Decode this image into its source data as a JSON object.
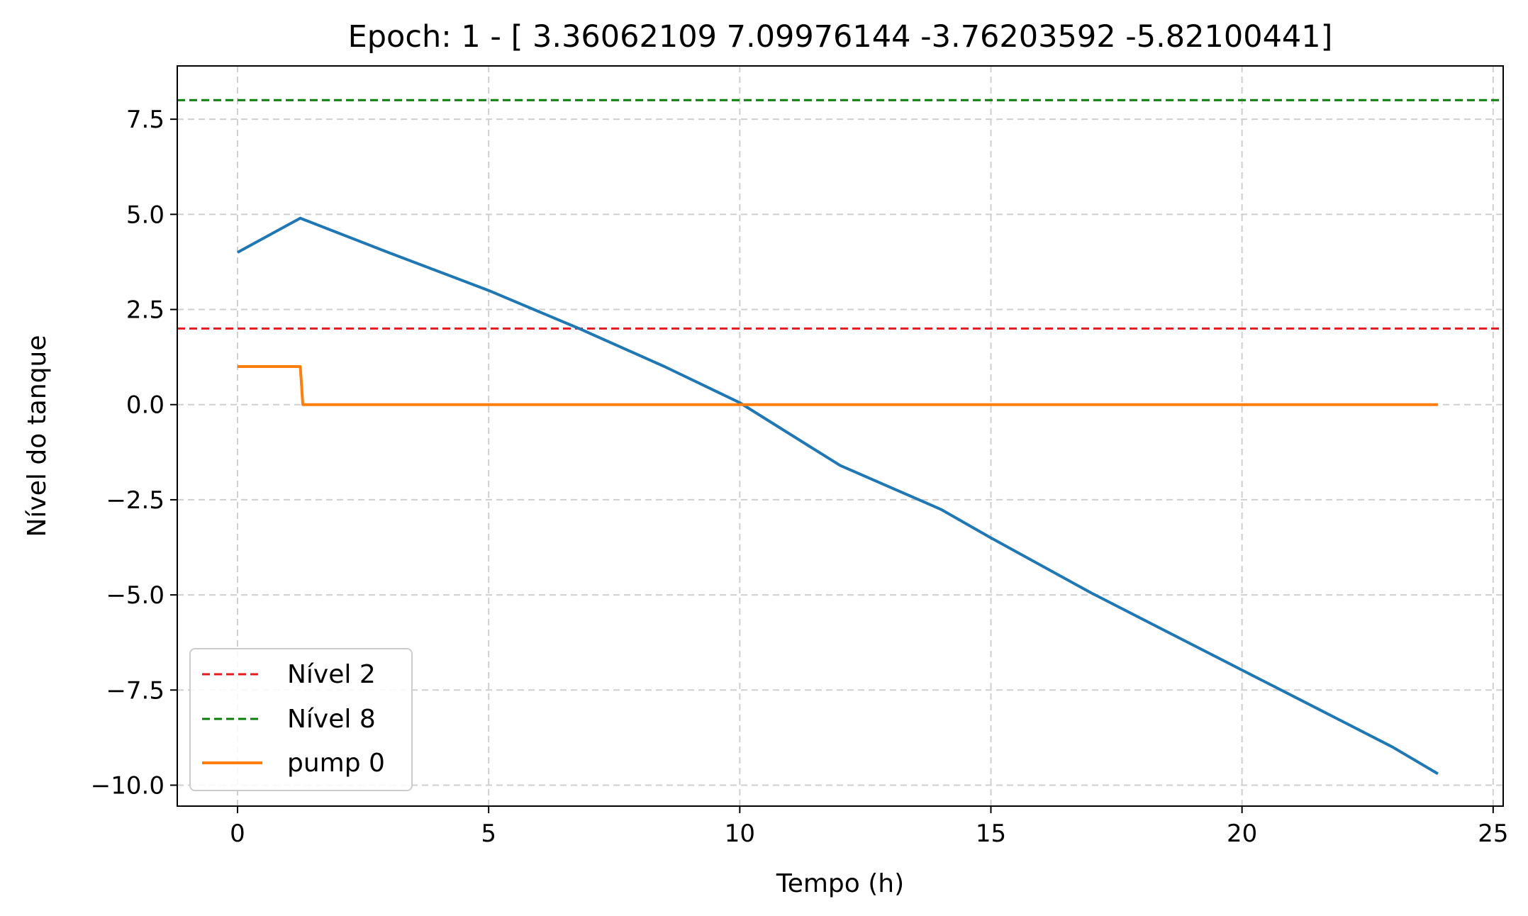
{
  "chart_data": {
    "type": "line",
    "title": "Epoch: 1 - [ 3.36062109  7.09976144 -3.76203592 -5.82100441]",
    "xlabel": "Tempo (h)",
    "ylabel": "Nível do tanque",
    "xlim": [
      -1.2,
      25.2
    ],
    "ylim": [
      -10.55,
      8.9
    ],
    "xticks": [
      0,
      5,
      10,
      15,
      20,
      25
    ],
    "xtick_labels": [
      "0",
      "5",
      "10",
      "15",
      "20",
      "25"
    ],
    "yticks": [
      7.5,
      5.0,
      2.5,
      0.0,
      -2.5,
      -5.0,
      -7.5,
      -10.0
    ],
    "ytick_labels": [
      "7.5",
      "5.0",
      "2.5",
      "0.0",
      "−2.5",
      "−5.0",
      "−7.5",
      "−10.0"
    ],
    "grid": true,
    "legend_position": "lower-left",
    "hlines": [
      {
        "name": "Nível 2",
        "y": 2,
        "color": "#e41a1c",
        "style": "dashed"
      },
      {
        "name": "Nível 8",
        "y": 8,
        "color": "#0a7d0a",
        "style": "dashed"
      }
    ],
    "series": [
      {
        "name": "",
        "color": "#1f77b4",
        "x": [
          0,
          1.25,
          3,
          5,
          6.8,
          8.5,
          10,
          12,
          14,
          15,
          17,
          19,
          21,
          23,
          23.9
        ],
        "y": [
          4.0,
          4.9,
          4.0,
          3.0,
          2.0,
          1.0,
          0.05,
          -1.6,
          -2.75,
          -3.5,
          -4.95,
          -6.3,
          -7.65,
          -9.0,
          -9.7
        ]
      },
      {
        "name": "pump 0",
        "color": "#ff7f0e",
        "x": [
          0,
          1.25,
          1.3,
          23.9
        ],
        "y": [
          1.0,
          1.0,
          0.0,
          0.0
        ]
      }
    ]
  }
}
